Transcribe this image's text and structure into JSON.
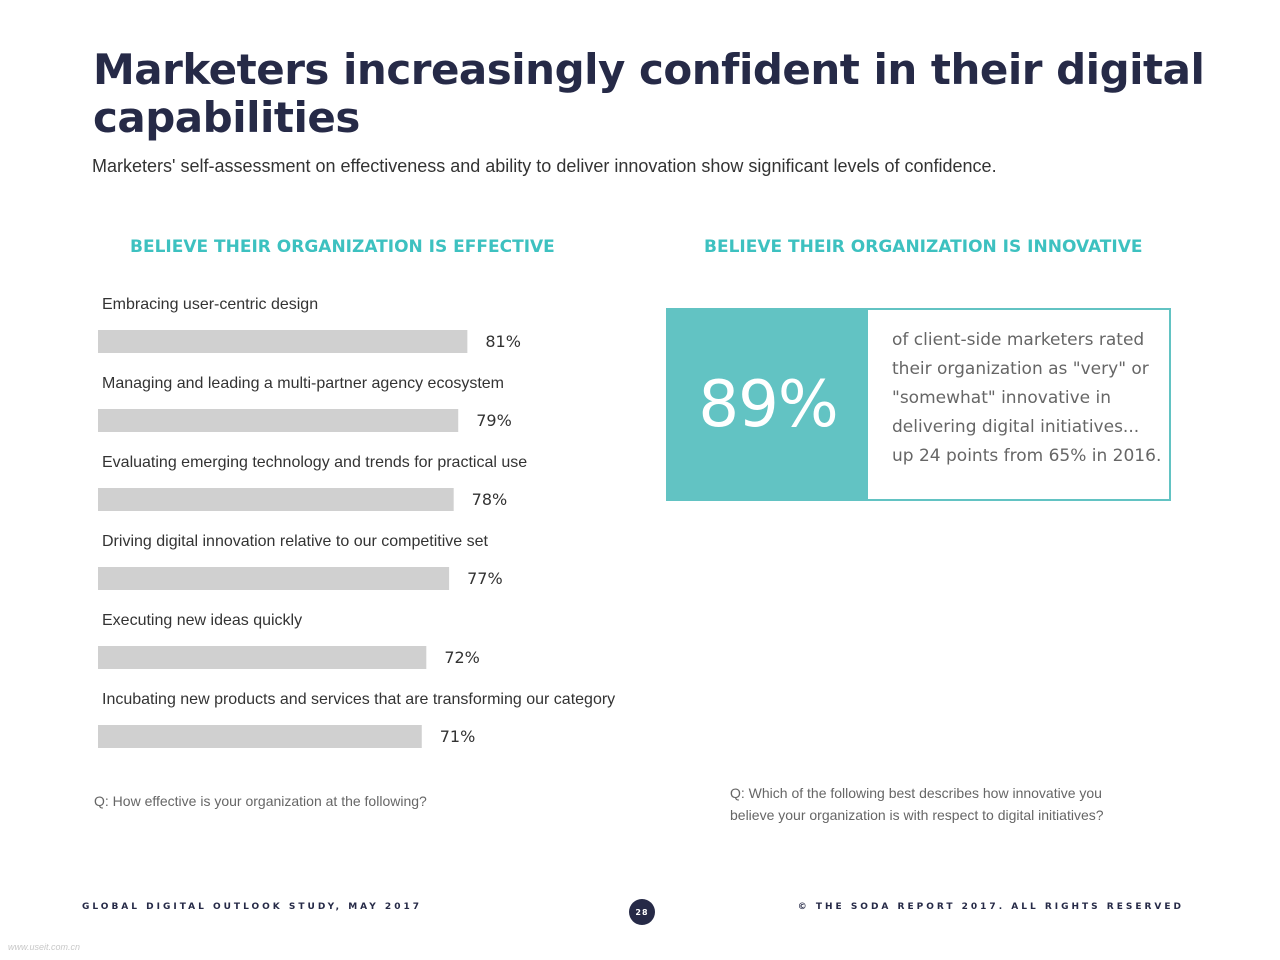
{
  "header": {
    "title": "Marketers increasingly confident in their digital capabilities",
    "subtitle": "Marketers' self-assessment on effectiveness and ability to deliver innovation show significant levels of confidence."
  },
  "left_panel": {
    "heading": "BELIEVE THEIR ORGANIZATION IS EFFECTIVE",
    "question": "Q: How effective is your organization at the following?"
  },
  "right_panel": {
    "heading": "BELIEVE THEIR ORGANIZATION IS INNOVATIVE",
    "stat_value": "89%",
    "stat_text": "of client-side marketers rated their organization as \"very\" or \"somewhat\" innovative in delivering digital initiatives... up 24 points from 65% in 2016.",
    "question": "Q: Which of the following best describes how innovative you believe your organization is with respect to digital initiatives?"
  },
  "footer": {
    "left": "GLOBAL DIGITAL OUTLOOK STUDY, MAY 2017",
    "page": "28",
    "right": "© THE SODA REPORT 2017. ALL RIGHTS RESERVED",
    "watermark": "www.useit.com.cn"
  },
  "colors": {
    "title": "#262a47",
    "accent": "#3dc1c0",
    "bar": "#d0d0d0",
    "stat_fill": "#62c3c3"
  },
  "chart_data": {
    "type": "bar",
    "orientation": "horizontal",
    "categories": [
      "Embracing user-centric design",
      "Managing and leading a multi-partner agency ecosystem",
      "Evaluating emerging technology and trends for practical use",
      "Driving digital innovation relative to our competitive set",
      "Executing new ideas quickly",
      "Incubating new products and services that are transforming our category"
    ],
    "values": [
      81,
      79,
      78,
      77,
      72,
      71
    ],
    "value_labels": [
      "81%",
      "79%",
      "78%",
      "77%",
      "72%",
      "71%"
    ],
    "xlim": [
      0,
      100
    ],
    "grid": false
  }
}
